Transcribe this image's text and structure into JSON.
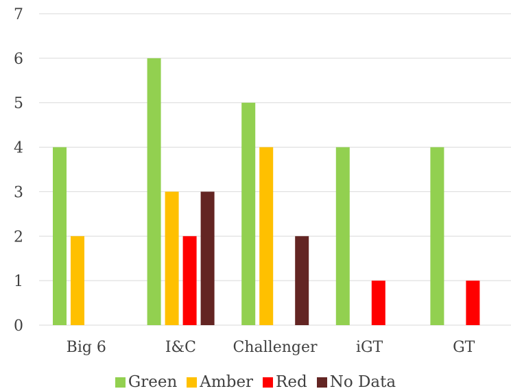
{
  "chart_data": {
    "type": "bar",
    "title": "",
    "xlabel": "",
    "ylabel": "",
    "categories": [
      "Big 6",
      "I&C",
      "Challenger",
      "iGT",
      "GT"
    ],
    "ylim": [
      0,
      7
    ],
    "yticks": [
      "0",
      "1",
      "2",
      "3",
      "4",
      "5",
      "6",
      "7"
    ],
    "grid": true,
    "legend_position": "bottom",
    "series": [
      {
        "name": "Green",
        "color": "#92D050",
        "values": [
          4,
          6,
          5,
          4,
          4
        ]
      },
      {
        "name": "Amber",
        "color": "#FFC000",
        "values": [
          2,
          3,
          4,
          0,
          0
        ]
      },
      {
        "name": "Red",
        "color": "#FF0000",
        "values": [
          0,
          2,
          0,
          1,
          1
        ]
      },
      {
        "name": "No Data",
        "color": "#632523",
        "values": [
          0,
          3,
          2,
          0,
          0
        ]
      }
    ]
  }
}
